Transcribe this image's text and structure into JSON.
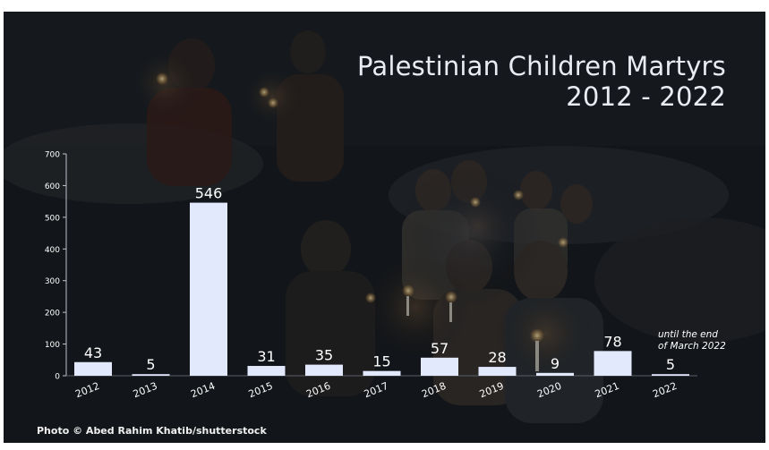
{
  "header": {
    "title_line1": "Palestinian Children Martyrs",
    "title_line2": "2012 - 2022"
  },
  "annotation": {
    "line1": "until the end",
    "line2": "of March 2022"
  },
  "footer": {
    "credit": "Photo © Abed Rahim Khatib/shutterstock"
  },
  "colors": {
    "bar": "#e3e9fd",
    "axis_text": "#ffffff",
    "background": "#14171b"
  },
  "chart_data": {
    "type": "bar",
    "categories": [
      "2012",
      "2013",
      "2014",
      "2015",
      "2016",
      "2017",
      "2018",
      "2019",
      "2020",
      "2021",
      "2022"
    ],
    "values": [
      43,
      5,
      546,
      31,
      35,
      15,
      57,
      28,
      9,
      78,
      5
    ],
    "title": "Palestinian Children Martyrs 2012 - 2022",
    "ylim": [
      0,
      700
    ],
    "yticks": [
      0,
      100,
      200,
      300,
      400,
      500,
      600,
      700
    ],
    "grid": false,
    "legend": "none"
  }
}
